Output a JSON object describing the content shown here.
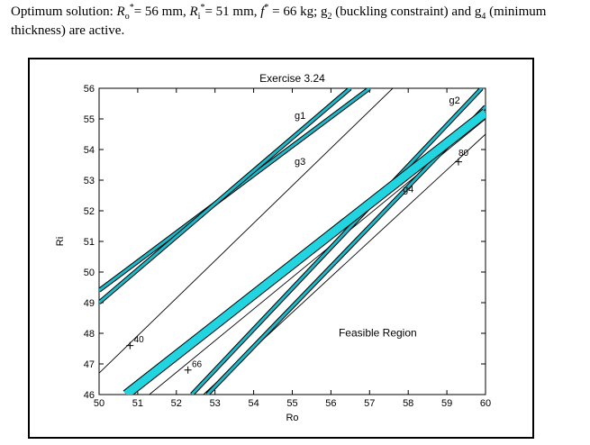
{
  "caption": {
    "line1_a": "Optimum solution: ",
    "ro_sym": "R",
    "ro_sub": "o",
    "ro_star": "*",
    "ro_val": "= 56 mm, ",
    "ri_sym": "R",
    "ri_sub": "i",
    "ri_star": "*",
    "ri_val": "= 51 mm, ",
    "f_sym": "f",
    "f_star": "*",
    "f_val": " = 66 kg; g",
    "g2_sub": "2",
    "mid": " (buckling constraint) and g",
    "g4_sub": "4",
    "tail": " (minimum thickness) are active."
  },
  "chart_data": {
    "type": "line",
    "title": "Exercise 3.24",
    "xlabel": "Ro",
    "ylabel": "Ri",
    "xlim": [
      50,
      60
    ],
    "ylim": [
      46,
      56
    ],
    "xticks": [
      50,
      51,
      52,
      53,
      54,
      55,
      56,
      57,
      58,
      59,
      60
    ],
    "yticks": [
      46,
      47,
      48,
      49,
      50,
      51,
      52,
      53,
      54,
      55,
      56
    ],
    "grid": false,
    "constraints": [
      {
        "name": "g1",
        "label_at": [
          55.2,
          55.0
        ],
        "lines": [
          {
            "x": [
              50.0,
              57.0
            ],
            "y": [
              49.4,
              56.0
            ],
            "color": "#1fb8c8",
            "width": 3
          }
        ]
      },
      {
        "name": "g3",
        "label_at": [
          55.2,
          53.5
        ],
        "lines": [
          {
            "x": [
              50.0,
              56.5
            ],
            "y": [
              49.0,
              56.0
            ],
            "color": "#1fb8c8",
            "width": 3
          }
        ]
      },
      {
        "name": "g2",
        "label_at": [
          59.2,
          55.5
        ],
        "lines": [
          {
            "x": [
              52.4,
              59.9
            ],
            "y": [
              46.0,
              56.0
            ],
            "color": "#1fb8c8",
            "width": 3
          },
          {
            "x": [
              52.8,
              60.0
            ],
            "y": [
              46.0,
              55.4
            ],
            "color": "#1fb8c8",
            "width": 3
          }
        ]
      },
      {
        "name": "g4",
        "label_at": [
          58.0,
          52.6
        ],
        "lines": [
          {
            "x": [
              50.7,
              60.0
            ],
            "y": [
              46.0,
              55.2
            ],
            "color": "#22d3e0",
            "width": 9
          }
        ]
      }
    ],
    "contours": [
      {
        "level": "40",
        "x": [
          50.0,
          57.6
        ],
        "y": [
          46.7,
          56.0
        ],
        "marker": [
          50.8,
          47.6
        ]
      },
      {
        "level": "66",
        "x": [
          51.3,
          60.0
        ],
        "y": [
          46.0,
          55.0
        ],
        "marker": [
          52.3,
          46.8
        ]
      },
      {
        "level": "80",
        "x": [
          52.7,
          60.0
        ],
        "y": [
          46.0,
          54.5
        ],
        "marker": [
          59.3,
          53.6
        ]
      }
    ],
    "annotations": [
      {
        "text": "Feasible Region",
        "at": [
          56.2,
          47.9
        ]
      },
      {
        "text": "40",
        "at": [
          50.9,
          47.7
        ]
      },
      {
        "text": "66",
        "at": [
          52.4,
          46.9
        ]
      },
      {
        "text": "80",
        "at": [
          59.3,
          53.8
        ]
      }
    ]
  }
}
